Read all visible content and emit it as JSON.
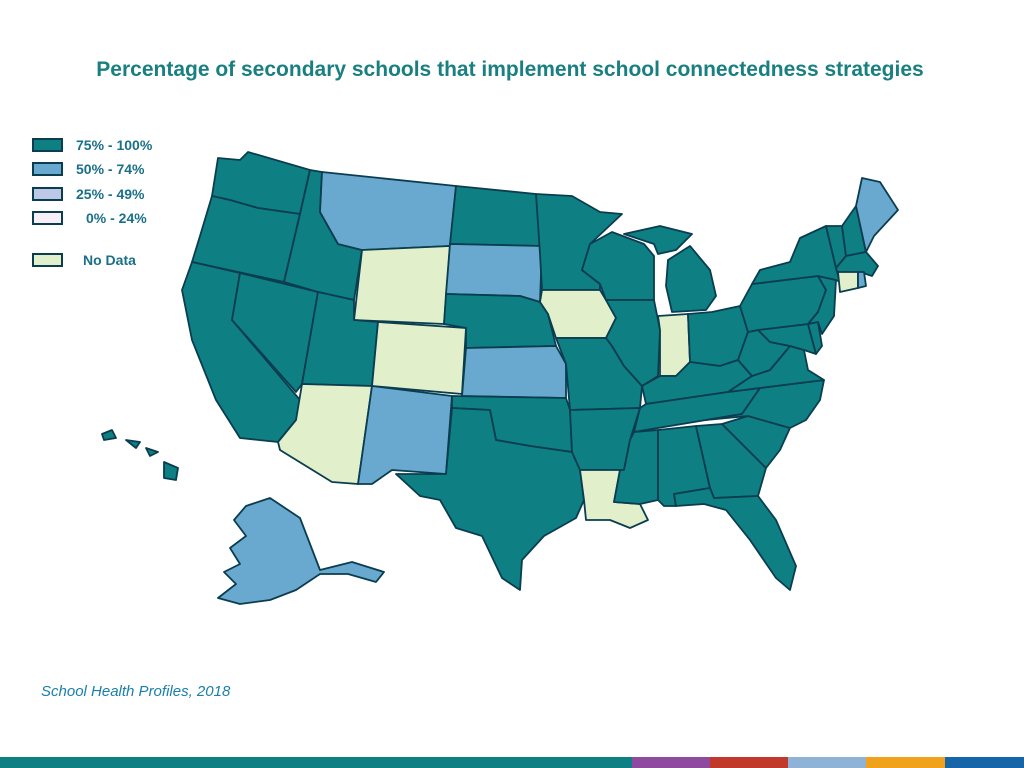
{
  "title": "Percentage of secondary schools that implement school connectedness strategies",
  "source": "School Health Profiles, 2018",
  "legend": [
    {
      "label": "75% - 100%",
      "color": "#0e7f83"
    },
    {
      "label": "50% - 74%",
      "color": "#6aa9cf"
    },
    {
      "label": "25% - 49%",
      "color": "#bcc8e6"
    },
    {
      "label": "0% - 24%",
      "color": "#f7eef8"
    },
    {
      "label": "No Data",
      "color": "#e1efca"
    }
  ],
  "map": {
    "colors": {
      "high": "#0e7f83",
      "mid": "#6aa9cf",
      "low": "#bcc8e6",
      "min": "#f7eef8",
      "nodata": "#e1efca",
      "border": "#0a3d4f"
    },
    "states": {
      "WA": "high",
      "OR": "high",
      "CA": "high",
      "NV": "high",
      "ID": "high",
      "MT": "mid",
      "WY": "nodata",
      "UT": "high",
      "CO": "nodata",
      "AZ": "nodata",
      "NM": "mid",
      "ND": "high",
      "SD": "mid",
      "NE": "high",
      "KS": "mid",
      "OK": "high",
      "TX": "high",
      "MN": "high",
      "IA": "nodata",
      "MO": "high",
      "AR": "high",
      "LA": "nodata",
      "WI": "high",
      "IL": "high",
      "MI": "high",
      "IN": "nodata",
      "OH": "high",
      "KY": "high",
      "TN": "high",
      "MS": "high",
      "AL": "high",
      "GA": "high",
      "FL": "high",
      "SC": "high",
      "NC": "high",
      "VA": "high",
      "WV": "high",
      "MD": "high",
      "DE": "high",
      "PA": "high",
      "NJ": "high",
      "NY": "high",
      "CT": "nodata",
      "RI": "mid",
      "MA": "high",
      "VT": "high",
      "NH": "high",
      "ME": "mid",
      "AK": "mid",
      "HI": "high"
    }
  },
  "footer_colors": [
    "#0e7f83",
    "#8e4a9e",
    "#c0392b",
    "#8fb3d6",
    "#f0a21c",
    "#1565a8"
  ]
}
